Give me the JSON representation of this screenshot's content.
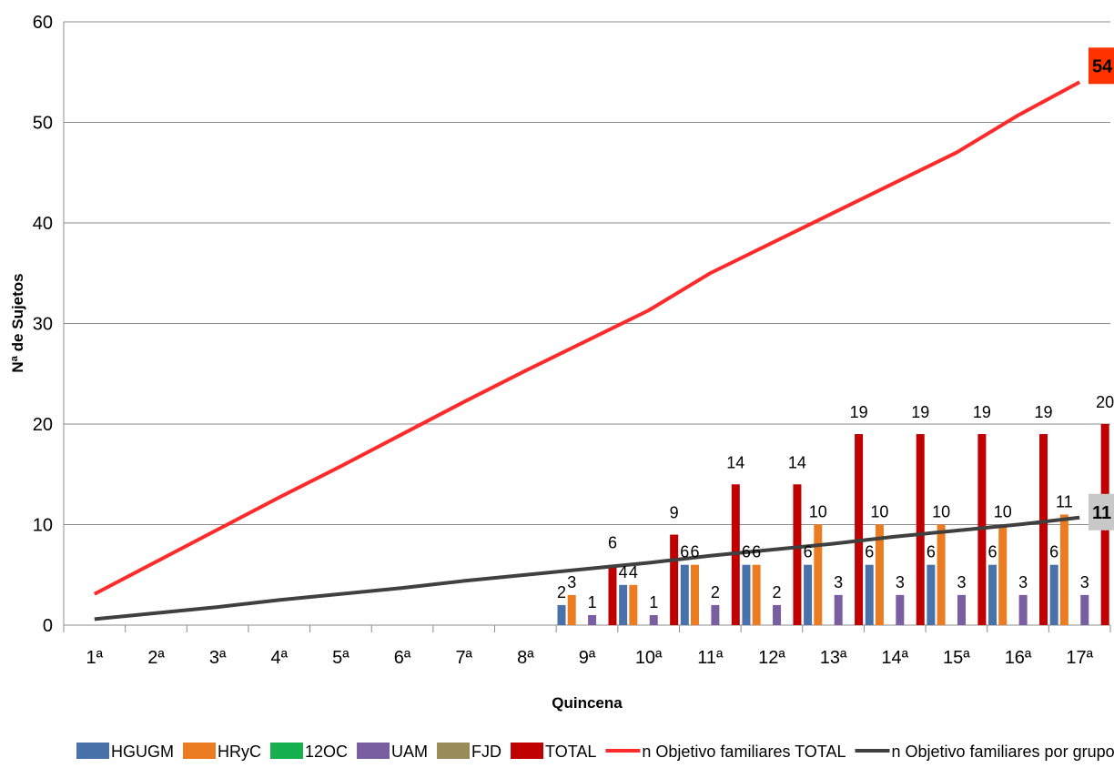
{
  "chart_data": {
    "type": "bar",
    "title": "",
    "xlabel": "Quincena",
    "ylabel": "Nª de Sujetos",
    "ylim": [
      0,
      60
    ],
    "yticks": [
      0,
      10,
      20,
      30,
      40,
      50,
      60
    ],
    "grid": "horizontal",
    "legend_position": "bottom",
    "categories": [
      "1ª",
      "2ª",
      "3ª",
      "4ª",
      "5ª",
      "6ª",
      "7ª",
      "8ª",
      "9ª",
      "10ª",
      "11ª",
      "12ª",
      "13ª",
      "14ª",
      "15ª",
      "16ª",
      "17ª"
    ],
    "series": [
      {
        "name": "HGUGM",
        "kind": "bar",
        "color": "#4a72aa",
        "values": [
          null,
          null,
          null,
          null,
          null,
          null,
          null,
          null,
          2,
          4,
          6,
          6,
          6,
          6,
          6,
          6,
          6
        ]
      },
      {
        "name": "HRyC",
        "kind": "bar",
        "color": "#ec7c22",
        "values": [
          null,
          null,
          null,
          null,
          null,
          null,
          null,
          null,
          3,
          4,
          6,
          6,
          10,
          10,
          10,
          10,
          11
        ]
      },
      {
        "name": "12OC",
        "kind": "bar",
        "color": "#16b04e",
        "values": [
          null,
          null,
          null,
          null,
          null,
          null,
          null,
          null,
          null,
          null,
          null,
          null,
          null,
          null,
          null,
          null,
          null
        ]
      },
      {
        "name": "UAM",
        "kind": "bar",
        "color": "#7a5fa0",
        "values": [
          null,
          null,
          null,
          null,
          null,
          null,
          null,
          null,
          1,
          1,
          2,
          2,
          3,
          3,
          3,
          3,
          3
        ]
      },
      {
        "name": "FJD",
        "kind": "bar",
        "color": "#9a8c5a",
        "values": [
          null,
          null,
          null,
          null,
          null,
          null,
          null,
          null,
          null,
          null,
          null,
          null,
          null,
          null,
          null,
          null,
          null
        ]
      },
      {
        "name": "TOTAL",
        "kind": "bar",
        "color": "#c00000",
        "values": [
          null,
          null,
          null,
          null,
          null,
          null,
          null,
          null,
          6,
          9,
          14,
          14,
          19,
          19,
          19,
          19,
          20
        ]
      },
      {
        "name": "n Objetivo familiares  TOTAL",
        "kind": "line",
        "color": "#ff2a2a",
        "values": [
          3.1,
          6.3,
          9.5,
          12.7,
          15.8,
          19.0,
          22.2,
          25.3,
          28.3,
          31.3,
          35.0,
          38.0,
          41.0,
          44.0,
          47.0,
          50.7,
          54
        ]
      },
      {
        "name": "n Objetivo familiares por grupo",
        "kind": "line",
        "color": "#404040",
        "values": [
          0.6,
          1.2,
          1.8,
          2.5,
          3.1,
          3.7,
          4.4,
          5.0,
          5.6,
          6.2,
          6.9,
          7.5,
          8.1,
          8.8,
          9.4,
          10.0,
          10.7
        ]
      }
    ],
    "end_labels": [
      {
        "series": "n Objetivo familiares  TOTAL",
        "text": "54",
        "background": "#ff3300"
      },
      {
        "series": "n Objetivo familiares por grupo",
        "text": "11",
        "background": "#c8c8c8"
      }
    ]
  }
}
